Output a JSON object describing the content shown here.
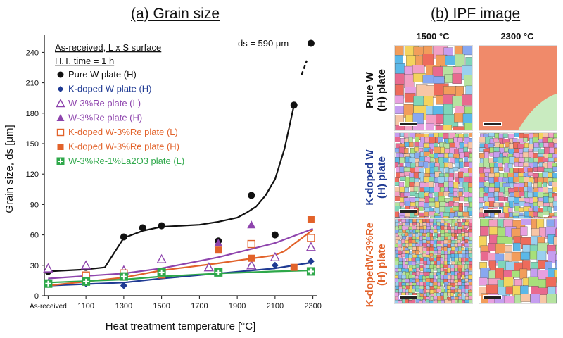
{
  "panel_a_title": "(a) Grain size",
  "panel_b_title": "(b) IPF image",
  "info_lines": [
    "As-received,  L x S surface",
    "H.T. time = 1 h"
  ],
  "annotation": "ds = 590 μm",
  "ipf": {
    "columns": [
      "1500 °C",
      "2300 °C"
    ],
    "rows": [
      {
        "label_lines": [
          "Pure W",
          "(H) plate"
        ],
        "color": "#111111"
      },
      {
        "label_lines": [
          "K-doped W",
          "(H) plate"
        ],
        "color": "#1f3a93"
      },
      {
        "label_lines": [
          "K-dopedW-3%Re",
          "(H) plate"
        ],
        "color": "#e2622a"
      }
    ]
  },
  "chart_data": {
    "type": "scatter",
    "xlabel": "Heat treatment temperature [°C]",
    "ylabel": "Grain size, ds [μm]",
    "x_tick_labels": [
      "As-received",
      "1100",
      "1300",
      "1500",
      "1700",
      "1900",
      "2100",
      "2300"
    ],
    "x_tick_values": [
      900,
      1100,
      1300,
      1500,
      1700,
      1900,
      2100,
      2300
    ],
    "xlim": [
      880,
      2320
    ],
    "ylim": [
      0,
      250
    ],
    "y_ticks": [
      0,
      30,
      60,
      90,
      120,
      150,
      180,
      210,
      240
    ],
    "legend_position": "top-left",
    "series": [
      {
        "name": "Pure W plate (H)",
        "color": "#111111",
        "marker": "circle-filled",
        "x": [
          900,
          1100,
          1300,
          1400,
          1500,
          1800,
          1975,
          2100,
          2200,
          2290
        ],
        "y": [
          24,
          28,
          58,
          67,
          69,
          54,
          99,
          60,
          188,
          249
        ],
        "trend_x": [
          900,
          1100,
          1200,
          1300,
          1400,
          1500,
          1600,
          1700,
          1800,
          1900,
          1950,
          2000,
          2050,
          2100,
          2150,
          2200
        ],
        "trend_y": [
          24,
          26,
          28,
          57,
          64,
          68,
          69,
          70,
          73,
          77,
          82,
          88,
          99,
          115,
          145,
          188
        ]
      },
      {
        "name": "K-doped W plate (H)",
        "color": "#1f3a93",
        "marker": "diamond-filled",
        "x": [
          900,
          1100,
          1300,
          1500,
          1800,
          1975,
          2100,
          2290
        ],
        "y": [
          13,
          12,
          10,
          20,
          24,
          30,
          30,
          34
        ],
        "trend_x": [
          900,
          1300,
          1500,
          1800,
          2100,
          2300
        ],
        "trend_y": [
          10,
          13,
          17,
          22,
          27,
          33
        ]
      },
      {
        "name": "W-3%Re plate (L)",
        "color": "#8e44ad",
        "marker": "triangle-open",
        "x": [
          900,
          1100,
          1300,
          1500,
          1750,
          1975,
          2100,
          2290
        ],
        "y": [
          27,
          30,
          25,
          36,
          28,
          30,
          38,
          48
        ]
      },
      {
        "name": "W-3%Re plate (H)",
        "color": "#8e44ad",
        "marker": "triangle-filled",
        "x": [
          1800,
          1975
        ],
        "y": [
          52,
          70
        ],
        "trend_x": [
          900,
          1300,
          1500,
          1800,
          2100,
          2300
        ],
        "trend_y": [
          17,
          22,
          27,
          38,
          52,
          66
        ]
      },
      {
        "name": "K-doped W-3%Re plate (L)",
        "color": "#e2622a",
        "marker": "square-open",
        "x": [
          1100,
          1300,
          1500,
          1975,
          2290
        ],
        "y": [
          20,
          22,
          21,
          51,
          57
        ]
      },
      {
        "name": "K-doped W-3%Re plate (H)",
        "color": "#e2622a",
        "marker": "square-filled",
        "x": [
          1800,
          1975,
          2200,
          2290
        ],
        "y": [
          45,
          37,
          28,
          75
        ],
        "trend_x": [
          900,
          1300,
          1500,
          1800,
          2100,
          2150,
          2300
        ],
        "trend_y": [
          10,
          18,
          25,
          32,
          40,
          44,
          65
        ]
      },
      {
        "name": "W-3%Re-1%La2O3 plate (L)",
        "color": "#2ea84a",
        "marker": "plus-square-filled",
        "x": [
          900,
          1100,
          1300,
          1500,
          1800,
          2290
        ],
        "y": [
          12,
          14,
          19,
          23,
          23,
          24
        ],
        "trend_x": [
          900,
          1300,
          1500,
          1800,
          2100,
          2300
        ],
        "trend_y": [
          13,
          16,
          19,
          22,
          24,
          25
        ]
      }
    ]
  }
}
